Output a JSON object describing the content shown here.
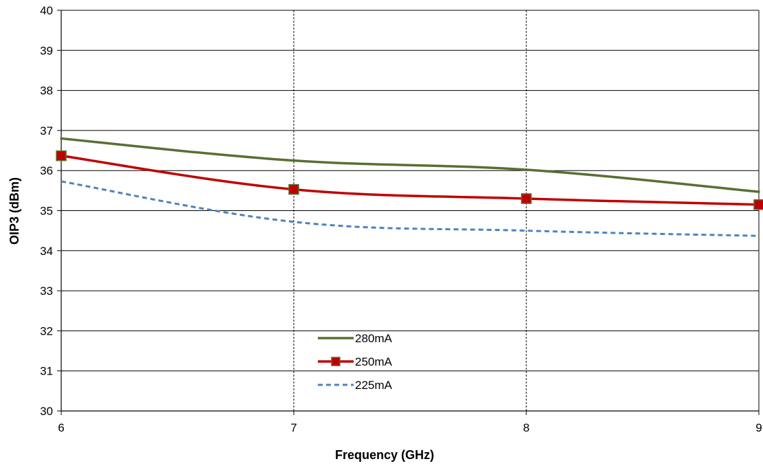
{
  "chart_data": {
    "type": "line",
    "title": "",
    "xlabel": "Frequency (GHz)",
    "ylabel": "OIP3 (dBm)",
    "x": [
      6,
      7,
      8,
      9
    ],
    "xlim": [
      6,
      9
    ],
    "ylim": [
      30,
      40
    ],
    "x_ticks": [
      "6",
      "7",
      "8",
      "9"
    ],
    "y_ticks": [
      "30",
      "31",
      "32",
      "33",
      "34",
      "35",
      "36",
      "37",
      "38",
      "39",
      "40"
    ],
    "grid": {
      "horizontal": "solid",
      "vertical": "dashed"
    },
    "legend": {
      "placement": "bottom-center"
    },
    "series": [
      {
        "name": "280mA",
        "values": [
          36.8,
          36.25,
          36.02,
          35.47
        ],
        "color": "#5a6e33",
        "style": "solid",
        "marker": "none"
      },
      {
        "name": "250mA",
        "values": [
          36.37,
          35.53,
          35.3,
          35.15
        ],
        "color": "#c00000",
        "style": "solid",
        "marker": "square"
      },
      {
        "name": "225mA",
        "values": [
          35.73,
          34.72,
          34.5,
          34.37
        ],
        "color": "#4f81bd",
        "style": "dashed",
        "marker": "none"
      }
    ]
  }
}
